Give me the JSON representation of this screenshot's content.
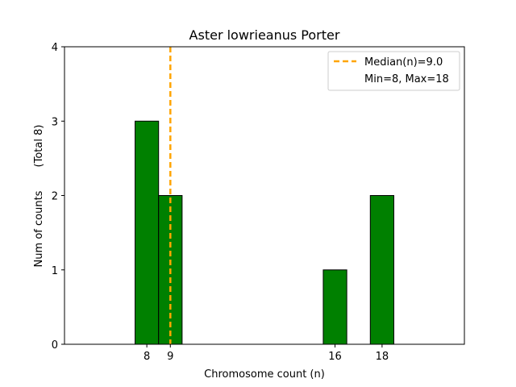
{
  "chart_data": {
    "type": "bar",
    "title": "Aster lowrieanus Porter",
    "xlabel": "Chromosome count (n)",
    "ylabel": "Num of counts",
    "ylabel_note": "(Total 8)",
    "xlim": [
      4.5,
      21.5
    ],
    "ylim": [
      0,
      4
    ],
    "x_ticks": [
      8,
      9,
      16,
      18
    ],
    "y_ticks": [
      0,
      1,
      2,
      3,
      4
    ],
    "bar_width": 1,
    "bars": [
      {
        "x": 8,
        "value": 3
      },
      {
        "x": 9,
        "value": 2
      },
      {
        "x": 16,
        "value": 1
      },
      {
        "x": 18,
        "value": 2
      }
    ],
    "median_line": {
      "x": 9.0,
      "label": "Median(n)=9.0",
      "color": "#ffa500",
      "style": "dashed"
    },
    "legend": {
      "placement": "top-right",
      "entries": [
        "Median(n)=9.0",
        "Min=8, Max=18"
      ]
    },
    "bar_color": "#008000",
    "bar_edge_color": "#000000",
    "grid": false
  }
}
